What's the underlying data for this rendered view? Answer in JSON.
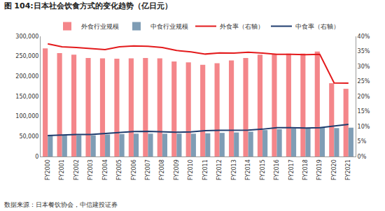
{
  "chart_data": {
    "type": "bar",
    "title": "图 104:日本社会饮食方式的变化趋势（亿日元）",
    "annotations": [
      "数据来源：日本餐饮协会，中信建投证券"
    ],
    "categories": [
      "FY2000",
      "FY2001",
      "FY2002",
      "FY2003",
      "FY2004",
      "FY2005",
      "FY2006",
      "FY2007",
      "FY2008",
      "FY2009",
      "FY2010",
      "FY2011",
      "FY2012",
      "FY2013",
      "FY2014",
      "FY2015",
      "FY2016",
      "FY2017",
      "FY2018",
      "FY2019",
      "FY2020",
      "FY2021"
    ],
    "series": [
      {
        "name": "外食行业规模",
        "type": "bar",
        "color": "#F4868A",
        "values": [
          270000,
          258000,
          254000,
          246000,
          245000,
          244000,
          245000,
          246000,
          245000,
          237000,
          235000,
          229000,
          233000,
          240000,
          246000,
          254000,
          255000,
          257000,
          257000,
          262000,
          183000,
          169000
        ]
      },
      {
        "name": "中食行业规模",
        "type": "bar",
        "color": "#7F9DB5",
        "values": [
          53000,
          54000,
          53000,
          53000,
          55000,
          56000,
          57000,
          57000,
          57000,
          57000,
          57000,
          58000,
          59000,
          60000,
          62000,
          66000,
          68000,
          70000,
          70000,
          72000,
          71000,
          72000
        ]
      },
      {
        "name": "外食率（右轴）",
        "type": "line",
        "axis": "y2",
        "color": "#E31A1C",
        "values": [
          37.5,
          36.5,
          36.3,
          36.0,
          35.6,
          36.5,
          36.8,
          36.7,
          36.3,
          35.3,
          34.8,
          34.1,
          34.5,
          34.4,
          34.7,
          34.4,
          34.0,
          34.0,
          33.9,
          34.0,
          24.5,
          24.4
        ]
      },
      {
        "name": "中食率（右轴）",
        "type": "line",
        "axis": "y2",
        "color": "#1F3C6E",
        "values": [
          7.0,
          7.2,
          7.3,
          7.3,
          7.6,
          8.0,
          8.3,
          8.4,
          8.2,
          8.1,
          8.2,
          8.6,
          8.7,
          8.7,
          8.8,
          9.1,
          9.6,
          9.6,
          9.5,
          9.6,
          10.2,
          10.7
        ]
      }
    ],
    "ylim": [
      0,
      300000
    ],
    "yticks": [
      0,
      {
        "value": 50000,
        "label": "50,000"
      },
      {
        "value": 100000,
        "label": "100,000"
      },
      {
        "value": 150000,
        "label": "150,000"
      },
      {
        "value": 200000,
        "label": "200,000"
      },
      {
        "value": 250000,
        "label": "250,000"
      },
      {
        "value": 300000,
        "label": "300,000"
      }
    ],
    "y2lim": [
      0,
      40
    ],
    "y2ticks": [
      {
        "value": 0,
        "label": "0%"
      },
      {
        "value": 5,
        "label": "5%"
      },
      {
        "value": 10,
        "label": "10%"
      },
      {
        "value": 15,
        "label": "15%"
      },
      {
        "value": 20,
        "label": "20%"
      },
      {
        "value": 25,
        "label": "25%"
      },
      {
        "value": 30,
        "label": "30%"
      },
      {
        "value": 35,
        "label": "35%"
      },
      {
        "value": 40,
        "label": "40%"
      }
    ],
    "grid": false,
    "legend": "top"
  }
}
